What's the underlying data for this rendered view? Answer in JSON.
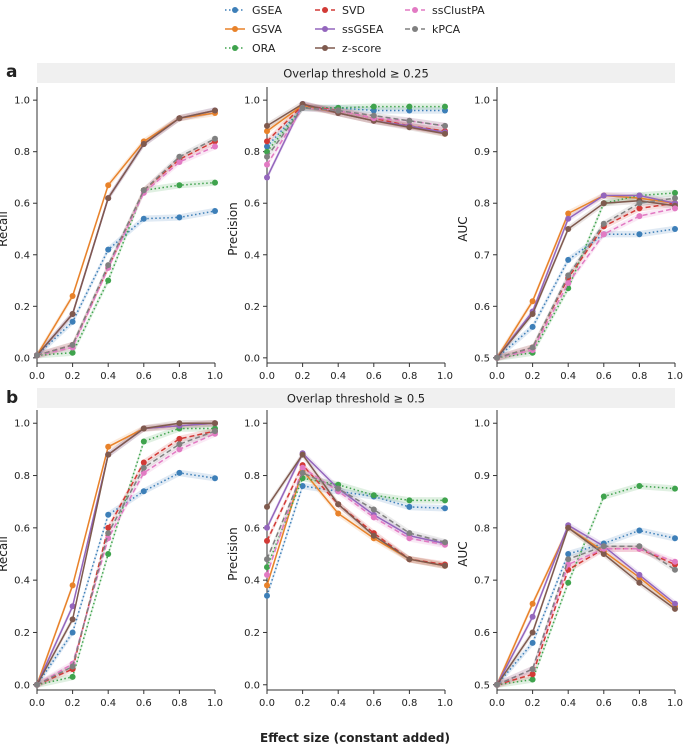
{
  "figure": {
    "xlabel": "Effect size (constant added)",
    "panel_letters": [
      "a",
      "b"
    ]
  },
  "methods": [
    {
      "name": "GSEA",
      "color": "#3d7fb8",
      "dash": "dotted"
    },
    {
      "name": "GSVA",
      "color": "#e8822a",
      "dash": "solid"
    },
    {
      "name": "ORA",
      "color": "#3fa34d",
      "dash": "dotted"
    },
    {
      "name": "SVD",
      "color": "#d23a36",
      "dash": "dashed"
    },
    {
      "name": "ssGSEA",
      "color": "#9466bd",
      "dash": "solid"
    },
    {
      "name": "z-score",
      "color": "#7f5a4e",
      "dash": "solid"
    },
    {
      "name": "ssClustPA",
      "color": "#e27ac3",
      "dash": "dashed"
    },
    {
      "name": "kPCA",
      "color": "#808080",
      "dash": "dashed"
    }
  ],
  "chart_data": [
    {
      "type": "line",
      "panel": "a",
      "strip": "Overlap threshold ≥ 0.25",
      "ylabel": "Recall",
      "xlabel": "",
      "x": [
        0.0,
        0.2,
        0.4,
        0.6,
        0.8,
        1.0
      ],
      "xlim": [
        0,
        1
      ],
      "ylim": [
        -0.02,
        1.02
      ],
      "xticks": [
        "0.0",
        "0.2",
        "0.4",
        "0.6",
        "0.8",
        "1.0"
      ],
      "yticks": [
        "0.0",
        "0.2",
        "0.4",
        "0.6",
        "0.8",
        "1.0"
      ],
      "series": [
        {
          "name": "GSEA",
          "values": [
            0.01,
            0.14,
            0.42,
            0.54,
            0.545,
            0.57
          ]
        },
        {
          "name": "GSVA",
          "values": [
            0.01,
            0.24,
            0.67,
            0.84,
            0.93,
            0.95
          ]
        },
        {
          "name": "ORA",
          "values": [
            0.01,
            0.02,
            0.3,
            0.65,
            0.67,
            0.68
          ]
        },
        {
          "name": "SVD",
          "values": [
            0.01,
            0.05,
            0.35,
            0.65,
            0.77,
            0.84
          ]
        },
        {
          "name": "ssGSEA",
          "values": [
            0.01,
            0.17,
            0.62,
            0.83,
            0.93,
            0.96
          ]
        },
        {
          "name": "z-score",
          "values": [
            0.01,
            0.17,
            0.62,
            0.83,
            0.93,
            0.96
          ]
        },
        {
          "name": "ssClustPA",
          "values": [
            0.01,
            0.04,
            0.35,
            0.64,
            0.76,
            0.82
          ]
        },
        {
          "name": "kPCA",
          "values": [
            0.01,
            0.05,
            0.36,
            0.65,
            0.78,
            0.85
          ]
        }
      ]
    },
    {
      "type": "line",
      "panel": "a",
      "strip": "Overlap threshold ≥ 0.25",
      "ylabel": "Precision",
      "xlabel": "",
      "x": [
        0.0,
        0.2,
        0.4,
        0.6,
        0.8,
        1.0
      ],
      "xlim": [
        0,
        1
      ],
      "ylim": [
        -0.02,
        1.02
      ],
      "xticks": [
        "0.0",
        "0.2",
        "0.4",
        "0.6",
        "0.8",
        "1.0"
      ],
      "yticks": [
        "0.0",
        "0.2",
        "0.4",
        "0.6",
        "0.8",
        "1.0"
      ],
      "series": [
        {
          "name": "GSEA",
          "values": [
            0.82,
            0.97,
            0.97,
            0.96,
            0.96,
            0.96
          ]
        },
        {
          "name": "GSVA",
          "values": [
            0.88,
            0.98,
            0.95,
            0.92,
            0.9,
            0.87
          ]
        },
        {
          "name": "ORA",
          "values": [
            0.8,
            0.97,
            0.97,
            0.975,
            0.975,
            0.975
          ]
        },
        {
          "name": "SVD",
          "values": [
            0.84,
            0.98,
            0.96,
            0.93,
            0.9,
            0.88
          ]
        },
        {
          "name": "ssGSEA",
          "values": [
            0.7,
            0.985,
            0.95,
            0.92,
            0.9,
            0.875
          ]
        },
        {
          "name": "z-score",
          "values": [
            0.9,
            0.985,
            0.95,
            0.92,
            0.895,
            0.87
          ]
        },
        {
          "name": "ssClustPA",
          "values": [
            0.75,
            0.97,
            0.96,
            0.93,
            0.92,
            0.9
          ]
        },
        {
          "name": "kPCA",
          "values": [
            0.78,
            0.97,
            0.96,
            0.94,
            0.92,
            0.9
          ]
        }
      ]
    },
    {
      "type": "line",
      "panel": "a",
      "strip": "Overlap threshold ≥ 0.25",
      "ylabel": "AUC",
      "xlabel": "",
      "x": [
        0.0,
        0.2,
        0.4,
        0.6,
        0.8,
        1.0
      ],
      "xlim": [
        0,
        1
      ],
      "ylim": [
        0.49,
        1.01
      ],
      "xticks": [
        "0.0",
        "0.2",
        "0.4",
        "0.6",
        "0.8",
        "1.0"
      ],
      "yticks": [
        "0.5",
        "0.6",
        "0.7",
        "0.8",
        "0.9",
        "1.0"
      ],
      "series": [
        {
          "name": "GSEA",
          "values": [
            0.5,
            0.56,
            0.69,
            0.74,
            0.74,
            0.75
          ]
        },
        {
          "name": "GSVA",
          "values": [
            0.5,
            0.61,
            0.78,
            0.815,
            0.81,
            0.8
          ]
        },
        {
          "name": "ORA",
          "values": [
            0.5,
            0.51,
            0.635,
            0.8,
            0.815,
            0.82
          ]
        },
        {
          "name": "SVD",
          "values": [
            0.5,
            0.52,
            0.655,
            0.755,
            0.79,
            0.8
          ]
        },
        {
          "name": "ssGSEA",
          "values": [
            0.5,
            0.59,
            0.77,
            0.815,
            0.815,
            0.8
          ]
        },
        {
          "name": "z-score",
          "values": [
            0.5,
            0.585,
            0.75,
            0.8,
            0.805,
            0.795
          ]
        },
        {
          "name": "ssClustPA",
          "values": [
            0.5,
            0.515,
            0.645,
            0.74,
            0.775,
            0.79
          ]
        },
        {
          "name": "kPCA",
          "values": [
            0.5,
            0.52,
            0.66,
            0.76,
            0.8,
            0.81
          ]
        }
      ]
    },
    {
      "type": "line",
      "panel": "b",
      "strip": "Overlap threshold ≥ 0.5",
      "ylabel": "Recall",
      "xlabel": "",
      "x": [
        0.0,
        0.2,
        0.4,
        0.6,
        0.8,
        1.0
      ],
      "xlim": [
        0,
        1
      ],
      "ylim": [
        -0.02,
        1.02
      ],
      "xticks": [
        "0.0",
        "0.2",
        "0.4",
        "0.6",
        "0.8",
        "1.0"
      ],
      "yticks": [
        "0.0",
        "0.2",
        "0.4",
        "0.6",
        "0.8",
        "1.0"
      ],
      "series": [
        {
          "name": "GSEA",
          "values": [
            0.0,
            0.2,
            0.65,
            0.74,
            0.81,
            0.79
          ]
        },
        {
          "name": "GSVA",
          "values": [
            0.0,
            0.38,
            0.91,
            0.98,
            0.99,
            1.0
          ]
        },
        {
          "name": "ORA",
          "values": [
            0.0,
            0.03,
            0.5,
            0.93,
            0.98,
            0.98
          ]
        },
        {
          "name": "SVD",
          "values": [
            0.0,
            0.06,
            0.6,
            0.85,
            0.94,
            0.97
          ]
        },
        {
          "name": "ssGSEA",
          "values": [
            0.0,
            0.3,
            0.88,
            0.98,
            0.99,
            1.0
          ]
        },
        {
          "name": "z-score",
          "values": [
            0.0,
            0.25,
            0.88,
            0.98,
            1.0,
            1.0
          ]
        },
        {
          "name": "ssClustPA",
          "values": [
            0.0,
            0.08,
            0.56,
            0.81,
            0.9,
            0.96
          ]
        },
        {
          "name": "kPCA",
          "values": [
            0.0,
            0.07,
            0.58,
            0.83,
            0.92,
            0.97
          ]
        }
      ]
    },
    {
      "type": "line",
      "panel": "b",
      "strip": "Overlap threshold ≥ 0.5",
      "ylabel": "Precision",
      "xlabel": "",
      "x": [
        0.0,
        0.2,
        0.4,
        0.6,
        0.8,
        1.0
      ],
      "xlim": [
        0,
        1
      ],
      "ylim": [
        -0.02,
        1.02
      ],
      "xticks": [
        "0.0",
        "0.2",
        "0.4",
        "0.6",
        "0.8",
        "1.0"
      ],
      "yticks": [
        "0.0",
        "0.2",
        "0.4",
        "0.6",
        "0.8",
        "1.0"
      ],
      "series": [
        {
          "name": "GSEA",
          "values": [
            0.34,
            0.76,
            0.74,
            0.72,
            0.68,
            0.675
          ]
        },
        {
          "name": "GSVA",
          "values": [
            0.38,
            0.82,
            0.655,
            0.56,
            0.48,
            0.455
          ]
        },
        {
          "name": "ORA",
          "values": [
            0.45,
            0.79,
            0.765,
            0.725,
            0.705,
            0.705
          ]
        },
        {
          "name": "SVD",
          "values": [
            0.55,
            0.84,
            0.69,
            0.58,
            0.48,
            0.46
          ]
        },
        {
          "name": "ssGSEA",
          "values": [
            0.6,
            0.885,
            0.75,
            0.65,
            0.57,
            0.54
          ]
        },
        {
          "name": "z-score",
          "values": [
            0.68,
            0.88,
            0.69,
            0.57,
            0.48,
            0.455
          ]
        },
        {
          "name": "ssClustPA",
          "values": [
            0.42,
            0.83,
            0.74,
            0.64,
            0.56,
            0.535
          ]
        },
        {
          "name": "kPCA",
          "values": [
            0.48,
            0.81,
            0.75,
            0.67,
            0.58,
            0.545
          ]
        }
      ]
    },
    {
      "type": "line",
      "panel": "b",
      "strip": "Overlap threshold ≥ 0.5",
      "ylabel": "AUC",
      "xlabel": "Effect size (constant added)",
      "x": [
        0.0,
        0.2,
        0.4,
        0.6,
        0.8,
        1.0
      ],
      "xlim": [
        0,
        1
      ],
      "ylim": [
        0.49,
        1.01
      ],
      "xticks": [
        "0.0",
        "0.2",
        "0.4",
        "0.6",
        "0.8",
        "1.0"
      ],
      "yticks": [
        "0.5",
        "0.6",
        "0.7",
        "0.8",
        "0.9",
        "1.0"
      ],
      "series": [
        {
          "name": "GSEA",
          "values": [
            0.5,
            0.58,
            0.75,
            0.77,
            0.795,
            0.78
          ]
        },
        {
          "name": "GSVA",
          "values": [
            0.5,
            0.655,
            0.8,
            0.755,
            0.705,
            0.65
          ]
        },
        {
          "name": "ORA",
          "values": [
            0.5,
            0.51,
            0.695,
            0.86,
            0.88,
            0.875
          ]
        },
        {
          "name": "SVD",
          "values": [
            0.5,
            0.52,
            0.72,
            0.76,
            0.76,
            0.73
          ]
        },
        {
          "name": "ssGSEA",
          "values": [
            0.5,
            0.63,
            0.805,
            0.765,
            0.71,
            0.655
          ]
        },
        {
          "name": "z-score",
          "values": [
            0.5,
            0.6,
            0.8,
            0.75,
            0.695,
            0.645
          ]
        },
        {
          "name": "ssClustPA",
          "values": [
            0.5,
            0.53,
            0.73,
            0.76,
            0.76,
            0.735
          ]
        },
        {
          "name": "kPCA",
          "values": [
            0.5,
            0.53,
            0.74,
            0.765,
            0.765,
            0.72
          ]
        }
      ]
    }
  ]
}
